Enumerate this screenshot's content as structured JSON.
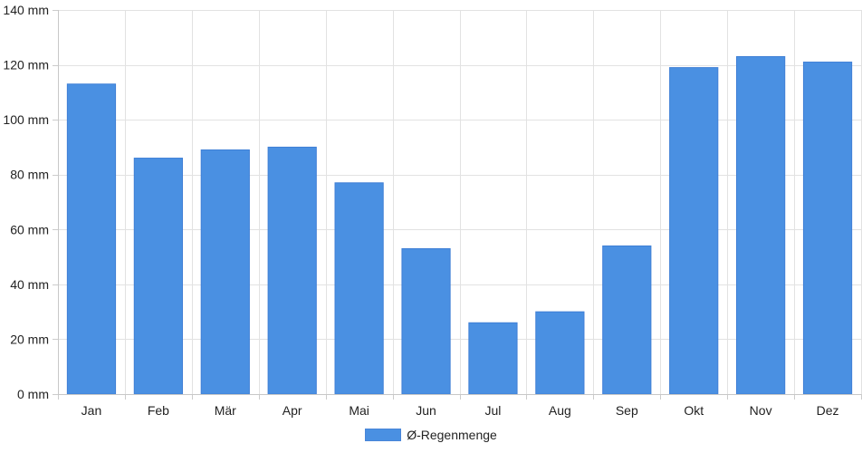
{
  "chart_data": {
    "type": "bar",
    "categories": [
      "Jan",
      "Feb",
      "Mär",
      "Apr",
      "Mai",
      "Jun",
      "Jul",
      "Aug",
      "Sep",
      "Okt",
      "Nov",
      "Dez"
    ],
    "series": [
      {
        "name": "Ø-Regenmenge",
        "values": [
          113,
          86,
          89,
          90,
          77,
          53,
          26,
          30,
          54,
          119,
          123,
          121
        ],
        "color": "#4a90e2"
      }
    ],
    "ylim": [
      0,
      140
    ],
    "yticks": [
      0,
      20,
      40,
      60,
      80,
      100,
      120,
      140
    ],
    "ytick_labels": [
      "0 mm",
      "20 mm",
      "40 mm",
      "60 mm",
      "80 mm",
      "100 mm",
      "120 mm",
      "140 mm"
    ],
    "grid": true,
    "legend_position": "bottom-center"
  }
}
